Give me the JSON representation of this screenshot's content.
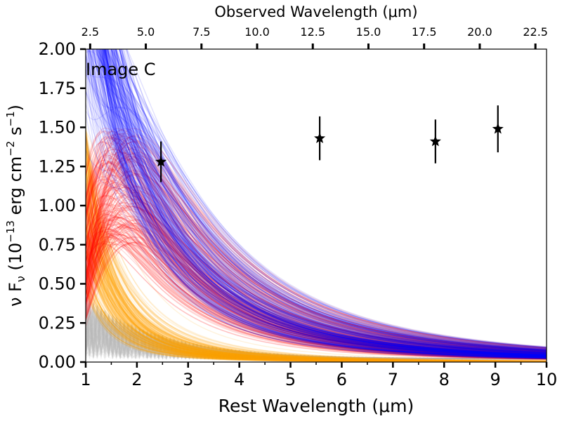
{
  "chart_data": {
    "type": "line",
    "title": "",
    "panel_label": "Image C",
    "xlabel": "Rest Wavelength (μm)",
    "ylabel": "ν F",
    "ylabel_sub": "ν",
    "ylabel_units_prefix": " (10",
    "ylabel_exp1": "−13",
    "ylabel_units_mid": " erg cm",
    "ylabel_exp2": "−2",
    "ylabel_units_mid2": " s",
    "ylabel_exp3": "−1",
    "ylabel_units_suffix": ")",
    "x2label": "Observed Wavelength (μm)",
    "xlim": [
      1,
      10
    ],
    "ylim": [
      0,
      2
    ],
    "x_ticks": [
      "1",
      "2",
      "3",
      "4",
      "5",
      "6",
      "7",
      "8",
      "9",
      "10"
    ],
    "y_ticks": [
      "0.00",
      "0.25",
      "0.50",
      "0.75",
      "1.00",
      "1.25",
      "1.50",
      "1.75",
      "2.00"
    ],
    "x2_ticks": [
      "2.5",
      "5.0",
      "7.5",
      "10.0",
      "12.5",
      "15.0",
      "17.5",
      "20.0",
      "22.5"
    ],
    "x2_tick_values": [
      2.5,
      5.0,
      7.5,
      10.0,
      12.5,
      15.0,
      17.5,
      20.0,
      22.5
    ],
    "observed_to_rest_factor": 2.3,
    "grid": false,
    "colors": {
      "total_model": "#0000ff",
      "hot_component": "#ffa500",
      "warm_component": "#ff0000",
      "other_component": "#bbbbbb",
      "data_points": "#000000"
    },
    "series": [
      {
        "marker": "star",
        "points": [
          {
            "x": 2.47,
            "y": 1.28,
            "yerr": 0.13
          },
          {
            "x": 5.57,
            "y": 1.43,
            "yerr": 0.14
          },
          {
            "x": 7.83,
            "y": 1.41,
            "yerr": 0.14
          },
          {
            "x": 9.05,
            "y": 1.49,
            "yerr": 0.15
          }
        ]
      }
    ]
  }
}
